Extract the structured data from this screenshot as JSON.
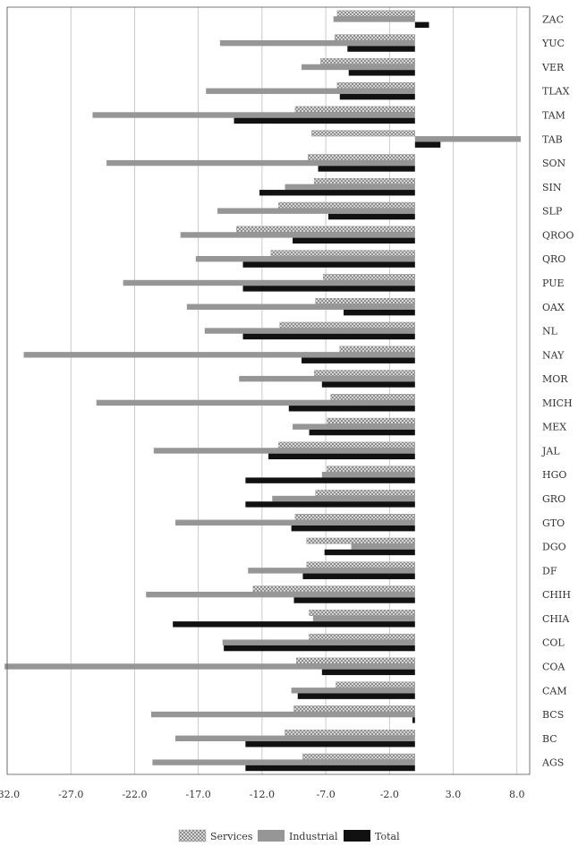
{
  "chart_data": {
    "type": "bar",
    "orientation": "horizontal",
    "title": "",
    "xlabel": "",
    "ylabel": "",
    "xlim": [
      -32.0,
      9.0
    ],
    "x_ticks": [
      -32.0,
      -27.0,
      -22.0,
      -17.0,
      -12.0,
      -7.0,
      -2.0,
      3.0,
      8.0
    ],
    "x_tick_labels": [
      "-32.0",
      "-27.0",
      "-22.0",
      "-17.0",
      "-12.0",
      "-7.0",
      "-2.0",
      "3.0",
      "8.0"
    ],
    "grid": "vertical",
    "legend_position": "bottom-center",
    "categories": [
      "ZAC",
      "YUC",
      "VER",
      "TLAX",
      "TAM",
      "TAB",
      "SON",
      "SIN",
      "SLP",
      "QROO",
      "QRO",
      "PUE",
      "OAX",
      "NL",
      "NAY",
      "MOR",
      "MICH",
      "MEX",
      "JAL",
      "HGO",
      "GRO",
      "GTO",
      "DGO",
      "DF",
      "CHIH",
      "CHIA",
      "COL",
      "COA",
      "CAM",
      "BCS",
      "BC",
      "AGS"
    ],
    "series": [
      {
        "name": "Services",
        "pattern": "crosshatch",
        "color": "#a9a9a9",
        "values": [
          -6.1,
          -6.3,
          -7.4,
          -6.1,
          -9.4,
          -8.1,
          -8.4,
          -7.9,
          -10.7,
          -14.0,
          -11.3,
          -7.2,
          -7.8,
          -10.6,
          -5.9,
          -7.9,
          -6.6,
          -6.9,
          -10.7,
          -6.9,
          -7.8,
          -9.4,
          -8.5,
          -8.5,
          -12.7,
          -8.3,
          -8.3,
          -9.3,
          -6.2,
          -9.5,
          -10.2,
          -8.8
        ]
      },
      {
        "name": "Industrial",
        "pattern": "solid",
        "color": "#969696",
        "values": [
          -6.4,
          -15.3,
          -8.9,
          -16.4,
          -25.3,
          8.3,
          -24.2,
          -10.2,
          -15.5,
          -18.4,
          -17.2,
          -22.9,
          -17.9,
          -16.5,
          -30.7,
          -13.8,
          -25.0,
          -9.6,
          -20.5,
          -7.3,
          -11.2,
          -18.8,
          -5.0,
          -13.1,
          -21.1,
          -8.0,
          -15.1,
          -32.2,
          -9.7,
          -20.7,
          -18.8,
          -20.6
        ]
      },
      {
        "name": "Total",
        "pattern": "solid",
        "color": "#111111",
        "values": [
          1.1,
          -5.3,
          -5.2,
          -5.9,
          -14.2,
          2.0,
          -7.6,
          -12.2,
          -6.8,
          -9.6,
          -13.5,
          -13.5,
          -5.6,
          -13.5,
          -8.9,
          -7.3,
          -9.9,
          -8.3,
          -11.5,
          -13.3,
          -13.3,
          -9.7,
          -7.1,
          -8.8,
          -9.5,
          -19.0,
          -15.0,
          -7.3,
          -9.2,
          -0.2,
          -13.3,
          -13.3
        ]
      }
    ]
  }
}
